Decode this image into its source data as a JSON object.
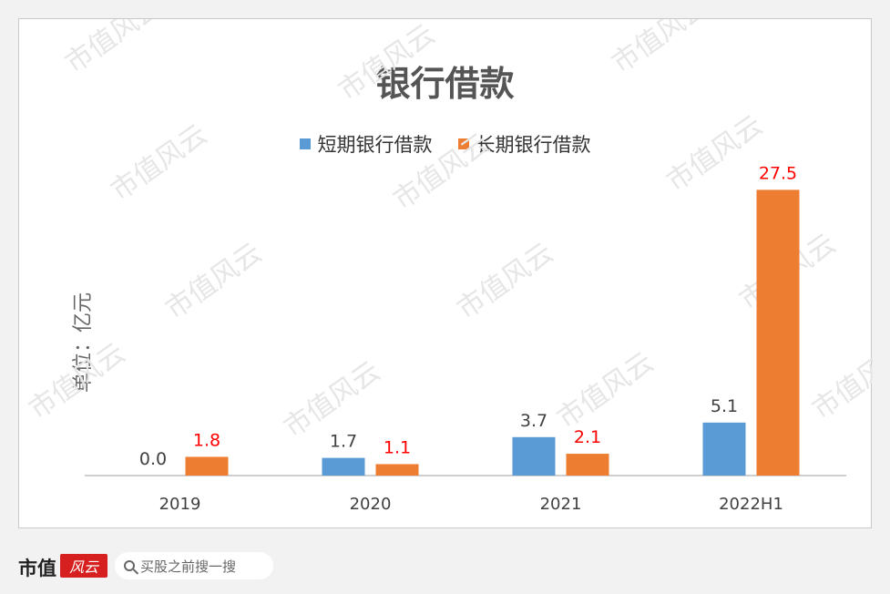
{
  "chart_data": {
    "type": "bar",
    "title": "银行借款",
    "ylabel": "单位：亿元",
    "categories": [
      "2019",
      "2020",
      "2021",
      "2022H1"
    ],
    "series": [
      {
        "name": "短期银行借款",
        "values": [
          0.0,
          1.7,
          3.7,
          5.1
        ],
        "label_color": "#404040"
      },
      {
        "name": "长期银行借款",
        "values": [
          1.8,
          1.1,
          2.1,
          27.5
        ],
        "label_color": "#ff0000"
      }
    ],
    "ylim": [
      0,
      29.9
    ],
    "grid": false,
    "legend_position": "top"
  },
  "colors": {
    "series_0": "#5b9bd5",
    "series_1": "#ed7d31"
  },
  "watermark": "市值风云",
  "footer": {
    "brand_name": "市值",
    "brand_mark": "风云",
    "search_placeholder": "买股之前搜一搜"
  }
}
